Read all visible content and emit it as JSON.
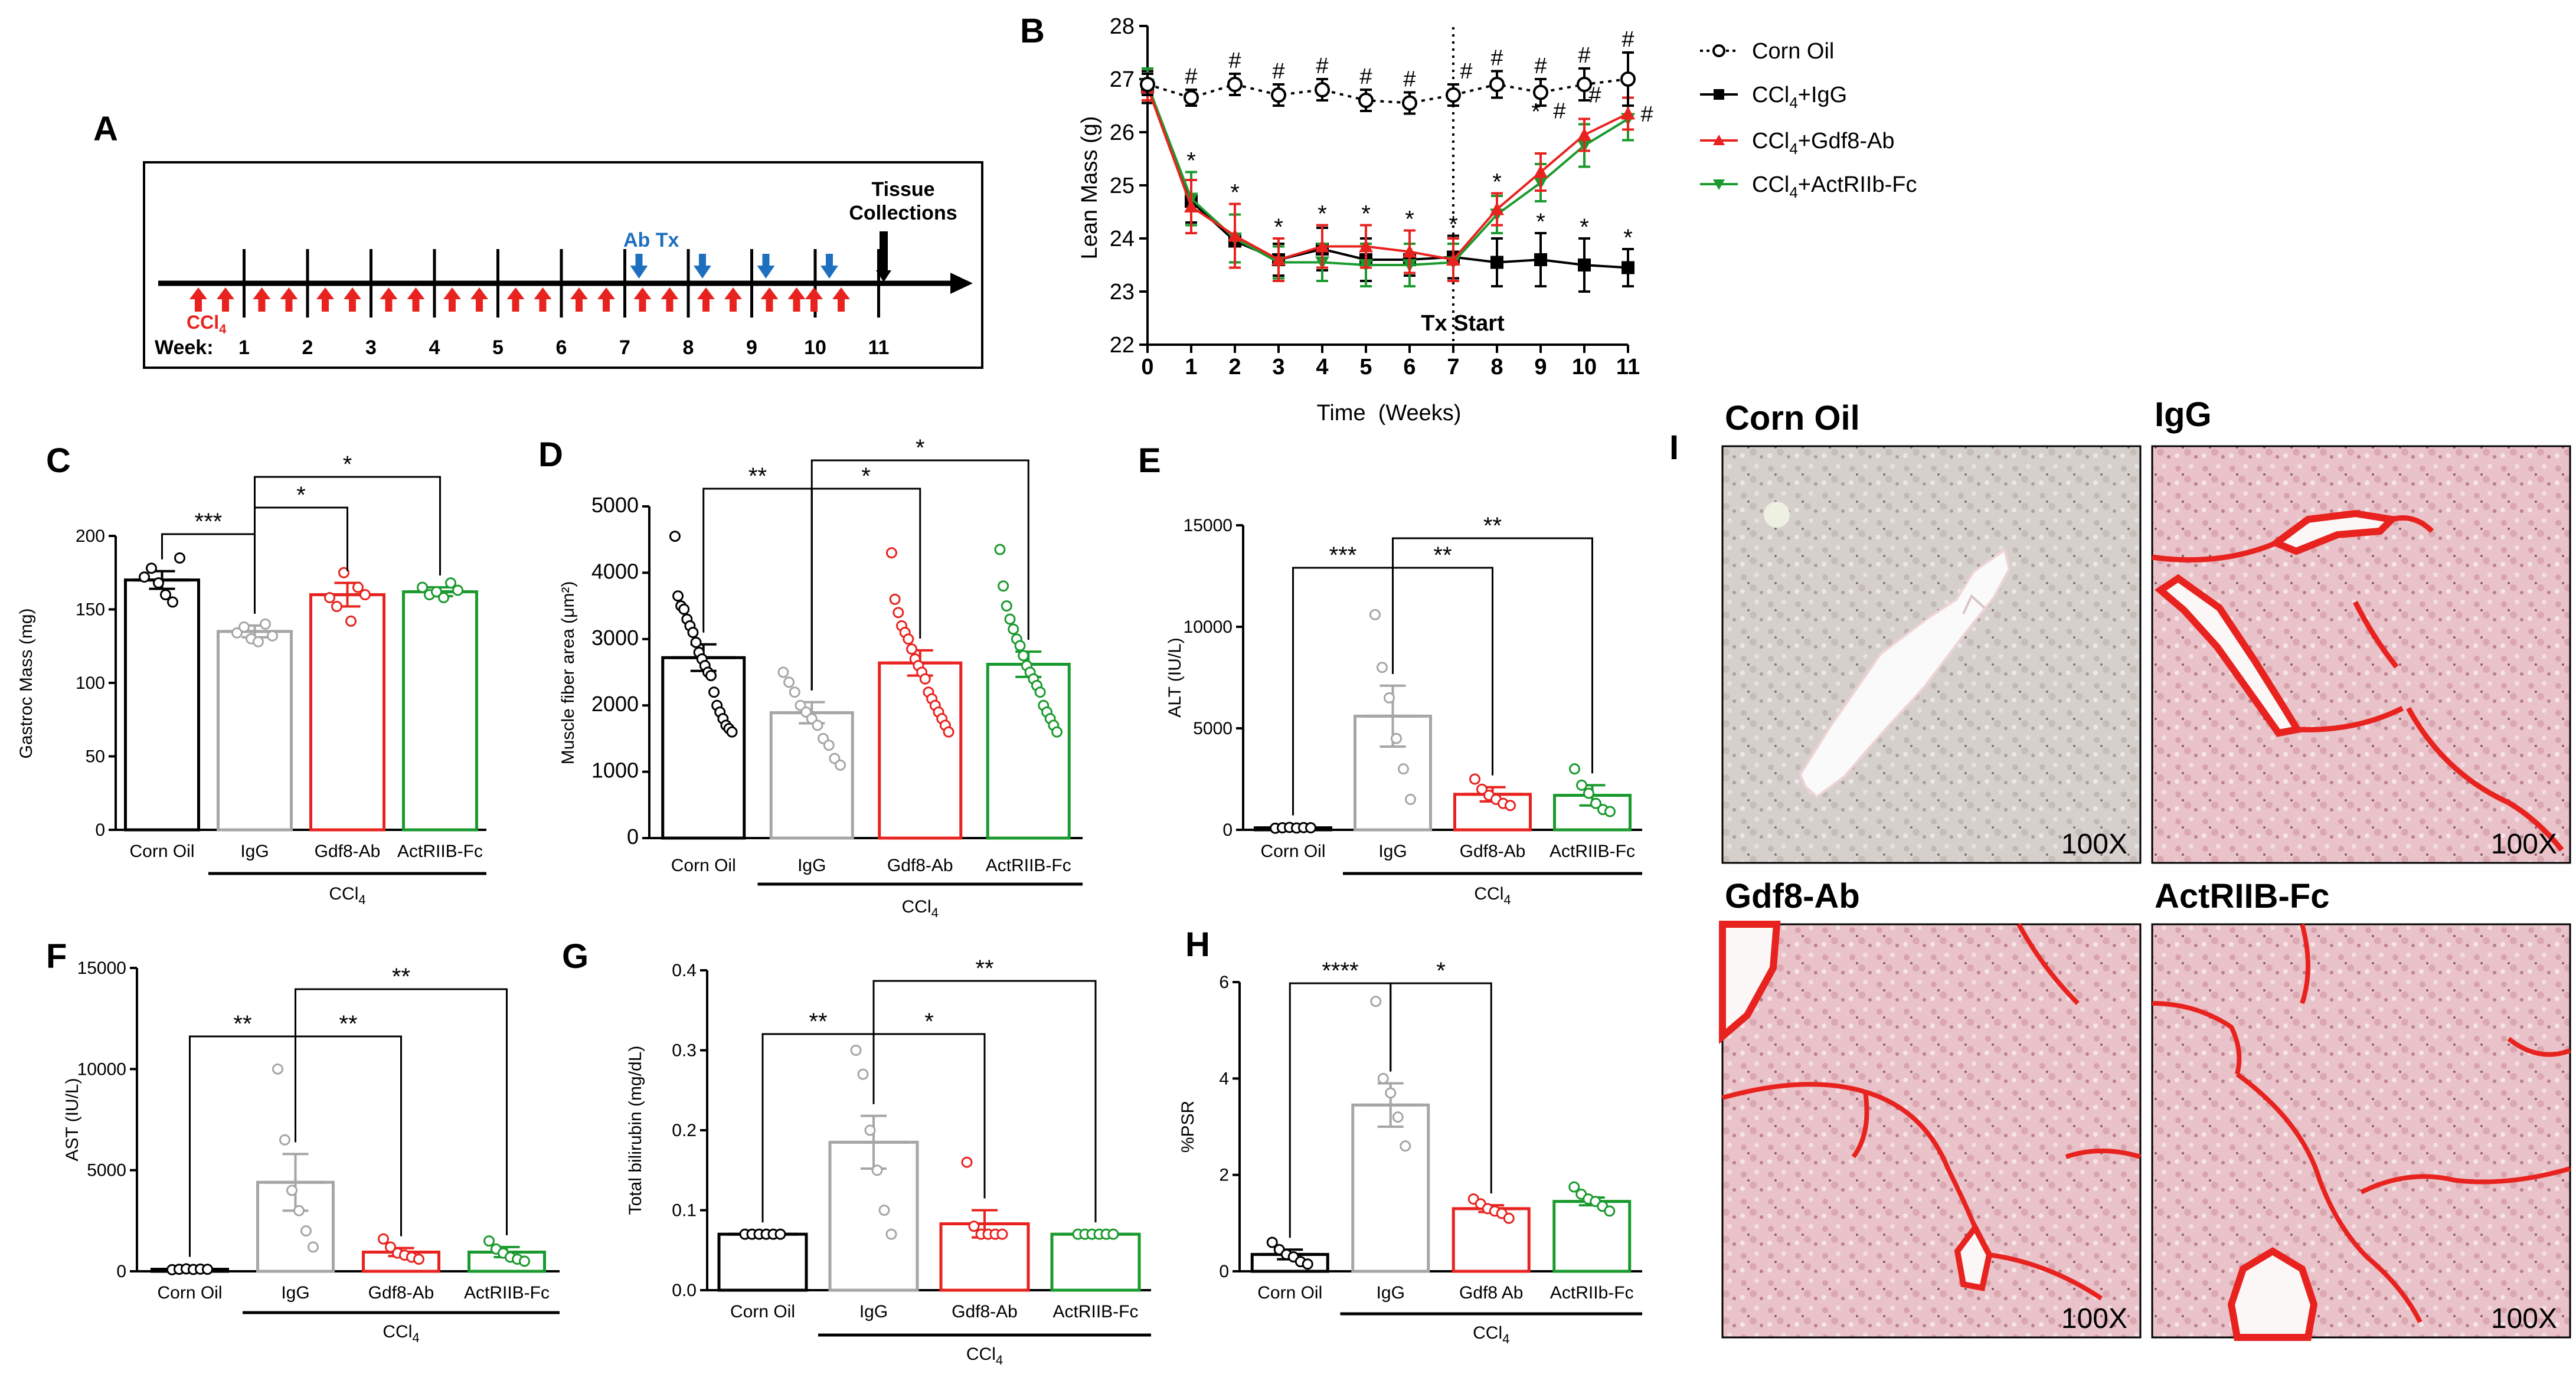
{
  "panel_letters": {
    "a": "A",
    "b": "B",
    "c": "C",
    "d": "D",
    "e": "E",
    "f": "F",
    "g": "G",
    "h": "H",
    "i": "I"
  },
  "colors": {
    "corn_oil": "#000000",
    "igg": "#a6a6a6",
    "gdf8": "#e8231f",
    "actriib": "#1a9a2e",
    "arrow_red": "#e8231f",
    "arrow_blue": "#1f6fbf"
  },
  "timeline": {
    "weeks_label": "Week:",
    "weeks": [
      "1",
      "2",
      "3",
      "4",
      "5",
      "6",
      "7",
      "8",
      "9",
      "10",
      "11"
    ],
    "ccl4_label": "CCl",
    "ccl4_sub": "4",
    "ab_tx_label": "Ab Tx",
    "tissue_label_1": "Tissue",
    "tissue_label_2": "Collections"
  },
  "chart_data": [
    {
      "id": "B",
      "type": "line",
      "xlabel": "Time  (Weeks)",
      "ylabel": "Lean Mass (g)",
      "x": [
        0,
        1,
        2,
        3,
        4,
        5,
        6,
        7,
        8,
        9,
        10,
        11
      ],
      "xlim": [
        0,
        11
      ],
      "ylim": [
        22,
        28
      ],
      "yticks": [
        "22",
        "23",
        "24",
        "25",
        "26",
        "27",
        "28"
      ],
      "xticks": [
        "0",
        "1",
        "2",
        "3",
        "4",
        "5",
        "6",
        "7",
        "8",
        "9",
        "10",
        "11"
      ],
      "tx_start_week": 7,
      "tx_start_label": "Tx Start",
      "series": [
        {
          "name": "Corn Oil",
          "values": [
            26.9,
            26.65,
            26.9,
            26.7,
            26.8,
            26.6,
            26.55,
            26.7,
            26.9,
            26.75,
            26.9,
            27.0
          ],
          "err": [
            0.2,
            0.15,
            0.2,
            0.2,
            0.2,
            0.2,
            0.2,
            0.2,
            0.25,
            0.25,
            0.3,
            0.5
          ]
        },
        {
          "name": "CCl4+IgG",
          "values": [
            26.85,
            24.7,
            23.95,
            23.6,
            23.8,
            23.6,
            23.6,
            23.65,
            23.55,
            23.6,
            23.5,
            23.45
          ],
          "err": [
            0.3,
            0.4,
            0.5,
            0.3,
            0.4,
            0.4,
            0.3,
            0.4,
            0.45,
            0.5,
            0.5,
            0.35
          ]
        },
        {
          "name": "CCl4+Gdf8-Ab",
          "values": [
            26.85,
            24.6,
            24.05,
            23.6,
            23.85,
            23.85,
            23.75,
            23.6,
            24.55,
            25.25,
            25.95,
            26.35
          ],
          "err": [
            0.25,
            0.5,
            0.6,
            0.4,
            0.4,
            0.4,
            0.4,
            0.4,
            0.3,
            0.35,
            0.3,
            0.3
          ]
        },
        {
          "name": "CCl4+ActRIIb-Fc",
          "values": [
            26.9,
            24.75,
            24.0,
            23.55,
            23.55,
            23.5,
            23.5,
            23.55,
            24.45,
            25.05,
            25.75,
            26.25
          ],
          "err": [
            0.3,
            0.5,
            0.45,
            0.3,
            0.35,
            0.4,
            0.4,
            0.35,
            0.35,
            0.35,
            0.4,
            0.4
          ]
        }
      ],
      "hash_weeks": [
        1,
        2,
        3,
        4,
        5,
        6,
        7,
        8,
        9,
        10,
        11
      ],
      "star_weeks": [
        1,
        2,
        3,
        4,
        5,
        6,
        7,
        8,
        9,
        10,
        11
      ],
      "legend": [
        "Corn Oil",
        "CCl4+IgG",
        "CCl4+Gdf8-Ab",
        "CCl4+ActRIIb-Fc"
      ]
    },
    {
      "id": "C",
      "type": "bar",
      "ylabel": "Gastroc Mass (mg)",
      "ylim": [
        0,
        200
      ],
      "yticks": [
        "0",
        "50",
        "100",
        "150",
        "200"
      ],
      "categories": [
        "Corn Oil",
        "IgG",
        "Gdf8-Ab",
        "ActRIIB-Fc"
      ],
      "values": [
        170,
        135,
        160,
        162
      ],
      "err": [
        6,
        4,
        8,
        3
      ],
      "points": [
        [
          172,
          178,
          168,
          160,
          155,
          185
        ],
        [
          134,
          138,
          130,
          128,
          140,
          132
        ],
        [
          158,
          152,
          175,
          142,
          165,
          160
        ],
        [
          165,
          160,
          162,
          158,
          168,
          163
        ]
      ],
      "group_label": "CCl",
      "group_sub": "4",
      "brackets": [
        {
          "from": 0,
          "to": 1,
          "stars": "***"
        },
        {
          "from": 1,
          "to": 2,
          "stars": "*"
        },
        {
          "from": 1,
          "to": 3,
          "stars": "*"
        }
      ]
    },
    {
      "id": "D",
      "type": "bar",
      "ylabel": "Muscle fiber area (μm²)",
      "ylim": [
        0,
        5000
      ],
      "yticks": [
        "0",
        "1000",
        "2000",
        "3000",
        "4000",
        "5000"
      ],
      "categories": [
        "Corn Oil",
        "IgG",
        "Gdf8-Ab",
        "ActRIIB-Fc"
      ],
      "values": [
        2720,
        1890,
        2640,
        2620
      ],
      "err": [
        200,
        160,
        190,
        190
      ],
      "points": [
        [
          4550,
          3650,
          3500,
          3450,
          3300,
          3200,
          3100,
          2950,
          2800,
          2700,
          2600,
          2500,
          2450,
          2200,
          2000,
          1900,
          1800,
          1700,
          1650,
          1600
        ],
        [
          2500,
          2350,
          2200,
          2000,
          1900,
          1800,
          1700,
          1500,
          1400,
          1200,
          1100
        ],
        [
          4300,
          3600,
          3400,
          3200,
          3100,
          3000,
          2850,
          2700,
          2600,
          2500,
          2400,
          2200,
          2100,
          2000,
          1900,
          1800,
          1700,
          1600
        ],
        [
          4350,
          3800,
          3500,
          3300,
          3150,
          3000,
          2900,
          2750,
          2600,
          2500,
          2400,
          2300,
          2200,
          2000,
          1900,
          1800,
          1700,
          1600
        ]
      ],
      "group_label": "CCl",
      "group_sub": "4",
      "brackets": [
        {
          "from": 0,
          "to": 1,
          "stars": "**"
        },
        {
          "from": 1,
          "to": 2,
          "stars": "*"
        },
        {
          "from": 1,
          "to": 3,
          "stars": "*"
        }
      ]
    },
    {
      "id": "E",
      "type": "bar",
      "ylabel": "ALT (IU/L)",
      "ylim": [
        0,
        15000
      ],
      "yticks": [
        "0",
        "5000",
        "10000",
        "15000"
      ],
      "categories": [
        "Corn Oil",
        "IgG",
        "Gdf8-Ab",
        "ActRIIB-Fc"
      ],
      "values": [
        100,
        5600,
        1750,
        1700
      ],
      "err": [
        30,
        1500,
        350,
        500
      ],
      "points": [
        [
          80,
          100,
          120,
          90,
          110,
          100
        ],
        [
          10600,
          8000,
          6500,
          4500,
          3000,
          1500
        ],
        [
          2500,
          2000,
          1700,
          1500,
          1300,
          1200
        ],
        [
          3000,
          2200,
          1800,
          1300,
          1000,
          900
        ]
      ],
      "group_label": "CCl",
      "group_sub": "4",
      "brackets": [
        {
          "from": 0,
          "to": 1,
          "stars": "***"
        },
        {
          "from": 1,
          "to": 2,
          "stars": "**"
        },
        {
          "from": 1,
          "to": 3,
          "stars": "**"
        }
      ]
    },
    {
      "id": "F",
      "type": "bar",
      "ylabel": "AST (IU/L)",
      "ylim": [
        0,
        15000
      ],
      "yticks": [
        "0",
        "5000",
        "10000",
        "15000"
      ],
      "categories": [
        "Corn Oil",
        "IgG",
        "Gdf8-Ab",
        "ActRIIB-Fc"
      ],
      "values": [
        100,
        4400,
        950,
        950
      ],
      "err": [
        30,
        1400,
        200,
        250
      ],
      "points": [
        [
          80,
          100,
          120,
          90,
          110,
          100
        ],
        [
          10000,
          6500,
          4000,
          3000,
          2000,
          1200
        ],
        [
          1600,
          1200,
          900,
          800,
          700,
          600
        ],
        [
          1500,
          1100,
          900,
          700,
          600,
          500
        ]
      ],
      "group_label": "CCl",
      "group_sub": "4",
      "brackets": [
        {
          "from": 0,
          "to": 1,
          "stars": "**"
        },
        {
          "from": 1,
          "to": 2,
          "stars": "**"
        },
        {
          "from": 1,
          "to": 3,
          "stars": "**"
        }
      ]
    },
    {
      "id": "G",
      "type": "bar",
      "ylabel": "Total bilirubin (mg/dL)",
      "ylim": [
        0,
        0.4
      ],
      "yticks": [
        "0.0",
        "0.1",
        "0.2",
        "0.3",
        "0.4"
      ],
      "categories": [
        "Corn Oil",
        "IgG",
        "Gdf8-Ab",
        "ActRIIB-Fc"
      ],
      "values": [
        0.07,
        0.185,
        0.083,
        0.07
      ],
      "err": [
        0,
        0.033,
        0.017,
        0
      ],
      "points": [
        [
          0.07,
          0.07,
          0.07,
          0.07,
          0.07,
          0.07
        ],
        [
          0.3,
          0.27,
          0.2,
          0.15,
          0.1,
          0.07
        ],
        [
          0.16,
          0.08,
          0.07,
          0.07,
          0.07,
          0.07
        ],
        [
          0.07,
          0.07,
          0.07,
          0.07,
          0.07,
          0.07
        ]
      ],
      "group_label": "CCl",
      "group_sub": "4",
      "brackets": [
        {
          "from": 0,
          "to": 1,
          "stars": "**"
        },
        {
          "from": 1,
          "to": 2,
          "stars": "*"
        },
        {
          "from": 1,
          "to": 3,
          "stars": "**"
        }
      ]
    },
    {
      "id": "H",
      "type": "bar",
      "ylabel": "%PSR",
      "ylim": [
        0,
        6
      ],
      "yticks": [
        "0",
        "2",
        "4",
        "6"
      ],
      "categories": [
        "Corn Oil",
        "IgG",
        "Gdf8 Ab",
        "ActRIIb-Fc"
      ],
      "values": [
        0.35,
        3.45,
        1.3,
        1.45
      ],
      "err": [
        0.1,
        0.45,
        0.07,
        0.08
      ],
      "points": [
        [
          0.6,
          0.45,
          0.35,
          0.3,
          0.2,
          0.15
        ],
        [
          5.6,
          4.0,
          3.7,
          3.2,
          2.6
        ],
        [
          1.5,
          1.4,
          1.3,
          1.25,
          1.2,
          1.1
        ],
        [
          1.75,
          1.6,
          1.5,
          1.45,
          1.35,
          1.25
        ]
      ],
      "group_label": "CCl",
      "group_sub": "4",
      "brackets": [
        {
          "from": 0,
          "to": 1,
          "stars": "****"
        },
        {
          "from": 1,
          "to": 2,
          "stars": "*"
        }
      ]
    }
  ],
  "histology": {
    "corn_oil": "Corn Oil",
    "igg": "IgG",
    "gdf8": "Gdf8-Ab",
    "actriib": "ActRIIB-Fc",
    "mag": "100X"
  }
}
